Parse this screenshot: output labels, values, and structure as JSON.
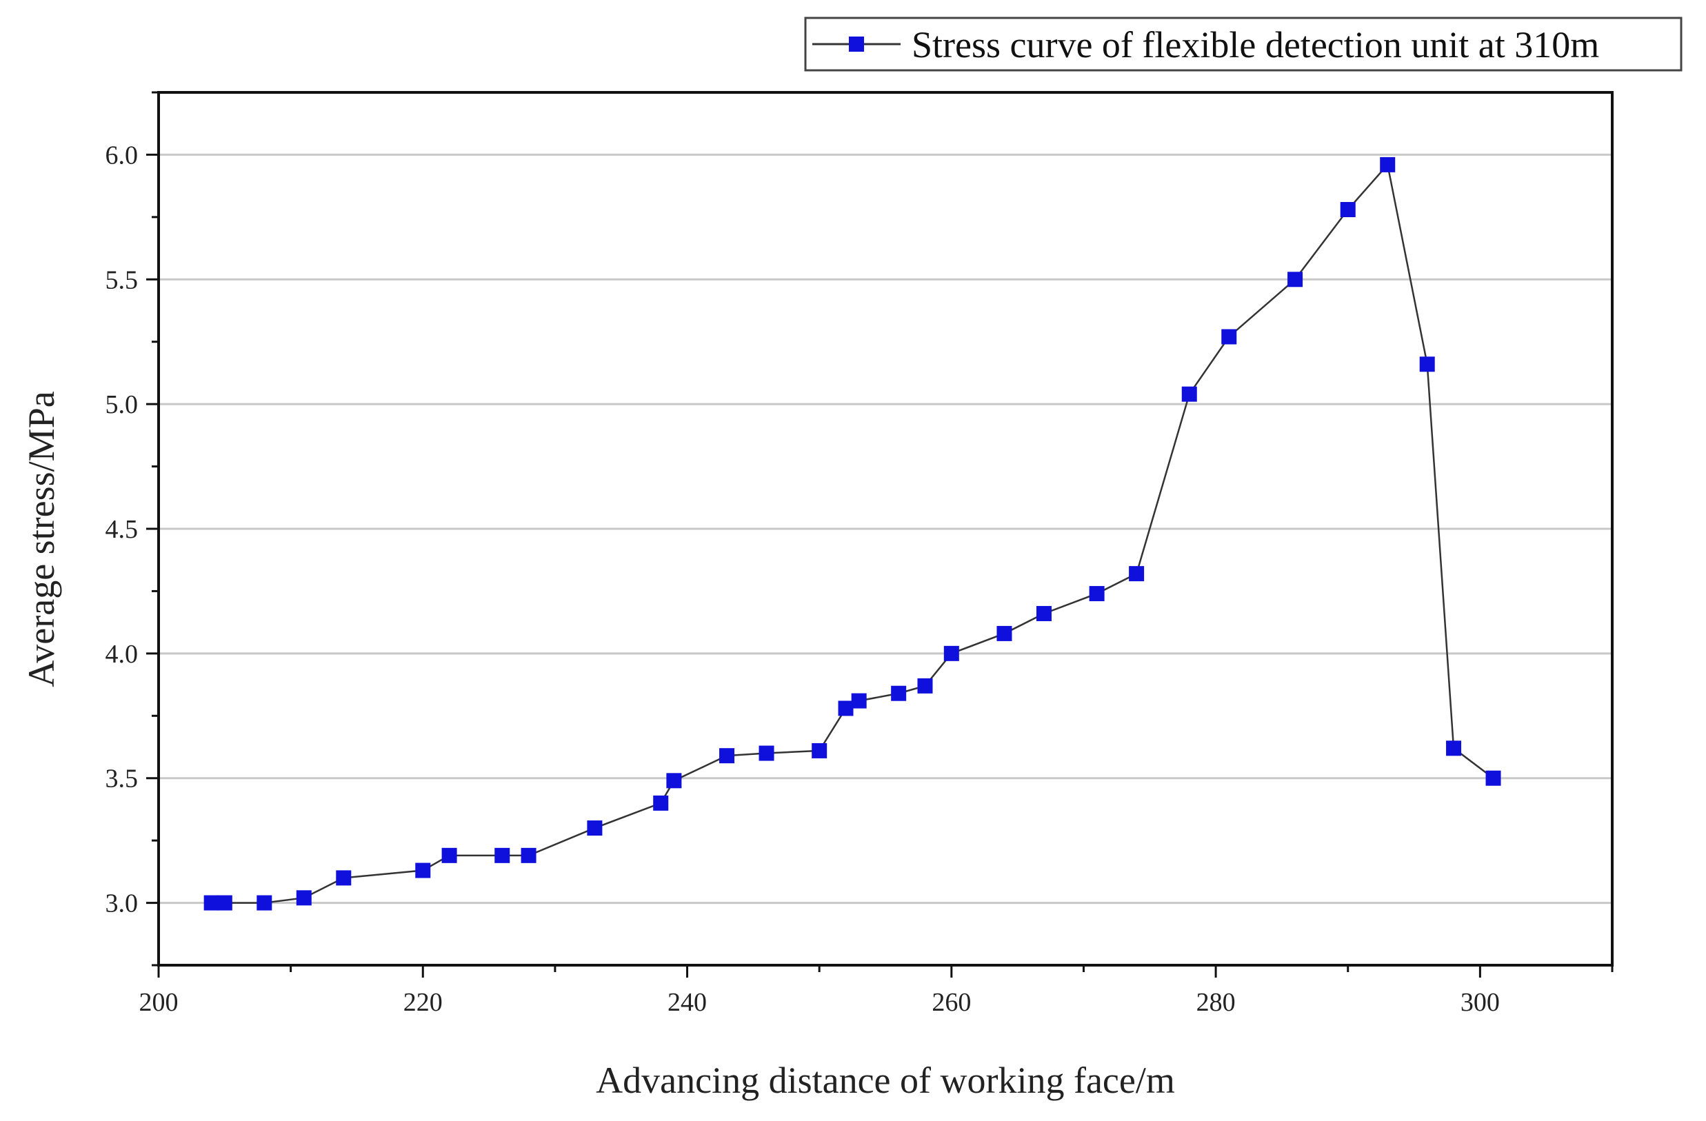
{
  "chart_data": {
    "type": "line",
    "xlabel": "Advancing distance of working face/m",
    "ylabel": "Average stress/MPa",
    "xlim": [
      200,
      310
    ],
    "ylim": [
      2.75,
      6.25
    ],
    "x_ticks": [
      200,
      220,
      240,
      260,
      280,
      300
    ],
    "x_tick_labels": [
      "200",
      "220",
      "240",
      "260",
      "280",
      "300"
    ],
    "y_ticks": [
      3.0,
      3.5,
      4.0,
      4.5,
      5.0,
      5.5,
      6.0
    ],
    "y_tick_labels": [
      "3.0",
      "3.5",
      "4.0",
      "4.5",
      "5.0",
      "5.5",
      "6.0"
    ],
    "grid": "horizontal",
    "legend_position": "top-right",
    "series": [
      {
        "name": "Stress curve of flexible detection unit at 310m",
        "color": "#1010dd",
        "line_color": "#333333",
        "marker": "square",
        "x": [
          204,
          205,
          208,
          211,
          214,
          220,
          222,
          226,
          228,
          233,
          238,
          239,
          243,
          246,
          250,
          252,
          253,
          256,
          258,
          260,
          264,
          267,
          271,
          274,
          278,
          281,
          286,
          290,
          293,
          296,
          298,
          301
        ],
        "y": [
          3.0,
          3.0,
          3.0,
          3.02,
          3.1,
          3.13,
          3.19,
          3.19,
          3.19,
          3.3,
          3.4,
          3.49,
          3.59,
          3.6,
          3.61,
          3.78,
          3.81,
          3.84,
          3.87,
          4.0,
          4.08,
          4.16,
          4.24,
          4.32,
          5.04,
          5.27,
          5.5,
          5.78,
          5.96,
          5.16,
          3.62,
          3.5
        ]
      }
    ]
  }
}
